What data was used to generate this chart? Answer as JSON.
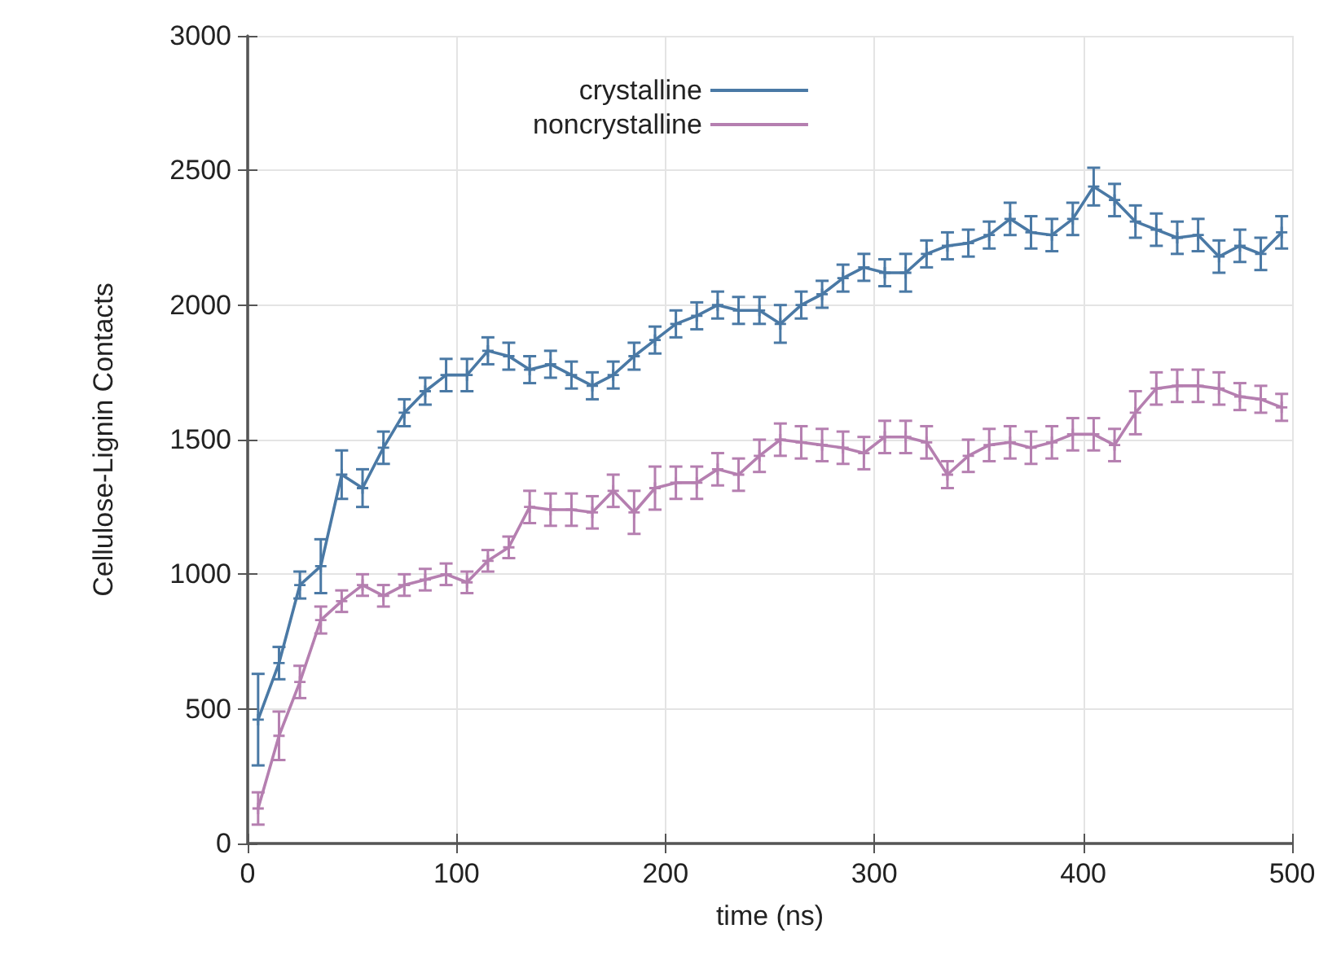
{
  "chart_data": {
    "type": "line",
    "xlabel": "time (ns)",
    "ylabel": "Cellulose-Lignin Contacts",
    "x": [
      5,
      15,
      25,
      35,
      45,
      55,
      65,
      75,
      85,
      95,
      105,
      115,
      125,
      135,
      145,
      155,
      165,
      175,
      185,
      195,
      205,
      215,
      225,
      235,
      245,
      255,
      265,
      275,
      285,
      295,
      305,
      315,
      325,
      335,
      345,
      355,
      365,
      375,
      385,
      395,
      405,
      415,
      425,
      435,
      445,
      455,
      465,
      475,
      485,
      495
    ],
    "series": [
      {
        "name": "crystalline",
        "color": "#4a79a5",
        "values": [
          460,
          670,
          960,
          1030,
          1370,
          1320,
          1470,
          1600,
          1680,
          1740,
          1740,
          1830,
          1810,
          1760,
          1780,
          1740,
          1700,
          1740,
          1810,
          1870,
          1930,
          1960,
          2000,
          1980,
          1980,
          1930,
          2000,
          2040,
          2100,
          2140,
          2120,
          2120,
          2190,
          2220,
          2230,
          2260,
          2320,
          2270,
          2260,
          2320,
          2440,
          2390,
          2310,
          2280,
          2250,
          2260,
          2180,
          2220,
          2190,
          2270
        ],
        "errors": [
          170,
          60,
          50,
          100,
          90,
          70,
          60,
          50,
          50,
          60,
          60,
          50,
          50,
          50,
          50,
          50,
          50,
          50,
          50,
          50,
          50,
          50,
          50,
          50,
          50,
          70,
          50,
          50,
          50,
          50,
          50,
          70,
          50,
          50,
          50,
          50,
          60,
          60,
          60,
          60,
          70,
          60,
          60,
          60,
          60,
          60,
          60,
          60,
          60,
          60
        ]
      },
      {
        "name": "noncrystalline",
        "color": "#b57fb0",
        "values": [
          130,
          400,
          600,
          830,
          900,
          960,
          920,
          960,
          980,
          1000,
          970,
          1050,
          1100,
          1250,
          1240,
          1240,
          1230,
          1310,
          1230,
          1320,
          1340,
          1340,
          1390,
          1370,
          1440,
          1500,
          1490,
          1480,
          1470,
          1450,
          1510,
          1510,
          1490,
          1370,
          1440,
          1480,
          1490,
          1470,
          1490,
          1520,
          1520,
          1480,
          1600,
          1690,
          1700,
          1700,
          1690,
          1660,
          1650,
          1620
        ],
        "errors": [
          60,
          90,
          60,
          50,
          40,
          40,
          40,
          40,
          40,
          40,
          40,
          40,
          40,
          60,
          60,
          60,
          60,
          60,
          80,
          80,
          60,
          60,
          60,
          60,
          60,
          60,
          60,
          60,
          60,
          60,
          60,
          60,
          60,
          50,
          60,
          60,
          60,
          60,
          60,
          60,
          60,
          60,
          80,
          60,
          60,
          60,
          60,
          50,
          50,
          50
        ]
      }
    ],
    "xlim": [
      0,
      500
    ],
    "xticks": [
      0,
      100,
      200,
      300,
      400,
      500
    ],
    "ylim": [
      0,
      3000
    ],
    "yticks": [
      0,
      500,
      1000,
      1500,
      2000,
      2500,
      3000
    ],
    "grid": true,
    "legend": "top",
    "marker": "cross",
    "line_style": "solid"
  }
}
